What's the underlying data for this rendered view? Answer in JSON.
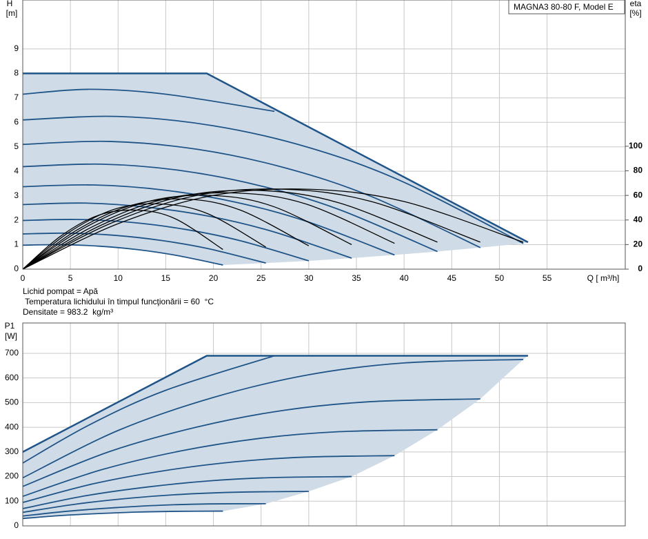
{
  "chart_data": [
    {
      "type": "line",
      "title": "MAGNA3 80-80 F, Model E",
      "ylabel": "H",
      "yunit": "[m]",
      "y2label": "eta",
      "y2unit": "[%]",
      "xlabel": "Q [ m³/h]",
      "annotations": [
        "Lichid pompat = Apă",
        " Temperatura lichidului în timpul funcţionării = 60  °C",
        "Densitate = 983.2  kg/m³"
      ],
      "xlim": [
        0,
        63.2
      ],
      "xticks": [
        0,
        5,
        10,
        15,
        20,
        25,
        30,
        35,
        40,
        45,
        50,
        55
      ],
      "ylim": [
        0,
        11
      ],
      "yticks": [
        0,
        1,
        2,
        3,
        4,
        5,
        6,
        7,
        8,
        9
      ],
      "y2lim": [
        0,
        219
      ],
      "y2ticks": [
        0,
        20,
        40,
        60,
        80,
        100
      ],
      "grid": true,
      "area_color": "#cfdbe6",
      "series": [
        {
          "color": "#1f5488",
          "smooth": false,
          "x": [
            0,
            19.3,
            53
          ],
          "values": [
            8,
            8,
            1.1
          ]
        },
        {
          "color": "#1f5488",
          "x": [
            0,
            10,
            20,
            30,
            40,
            52.5
          ],
          "values": [
            6.1,
            6.24,
            5.86,
            4.97,
            3.55,
            1.05
          ]
        },
        {
          "color": "#1f5488",
          "x": [
            0,
            9.14,
            18.28,
            27.42,
            36.56,
            48
          ],
          "values": [
            5.1,
            5.22,
            4.9,
            4.15,
            2.97,
            0.88
          ]
        },
        {
          "color": "#1f5488",
          "x": [
            0,
            8.29,
            16.58,
            24.87,
            33.16,
            43.5
          ],
          "values": [
            4.19,
            4.29,
            4.03,
            3.41,
            2.44,
            0.72
          ]
        },
        {
          "color": "#1f5488",
          "x": [
            0,
            7.43,
            14.86,
            22.29,
            29.72,
            39
          ],
          "values": [
            3.37,
            3.44,
            3.23,
            2.74,
            1.96,
            0.58
          ]
        },
        {
          "color": "#1f5488",
          "x": [
            0,
            6.57,
            13.14,
            19.71,
            26.28,
            34.5
          ],
          "values": [
            2.64,
            2.7,
            2.53,
            2.15,
            1.53,
            0.45
          ]
        },
        {
          "color": "#1f5488",
          "x": [
            0,
            5.71,
            11.42,
            17.13,
            22.84,
            30
          ],
          "values": [
            1.99,
            2.03,
            1.91,
            1.62,
            1.16,
            0.34
          ]
        },
        {
          "color": "#1f5488",
          "x": [
            0,
            4.86,
            9.72,
            14.58,
            19.44,
            25.5
          ],
          "values": [
            1.44,
            1.47,
            1.38,
            1.17,
            0.84,
            0.25
          ]
        },
        {
          "color": "#1f5488",
          "x": [
            0,
            4,
            8,
            12,
            16,
            21
          ],
          "values": [
            0.98,
            1.0,
            0.94,
            0.8,
            0.57,
            0.17
          ]
        },
        {
          "color": "#1f5488",
          "x": [
            0,
            7,
            15,
            26.4
          ],
          "values": [
            7.15,
            7.35,
            7.15,
            6.45
          ]
        },
        {
          "color": "#000000",
          "axis": "y2",
          "x": [
            0,
            10,
            20,
            30,
            40,
            52.5
          ],
          "values": [
            0,
            37,
            60,
            65,
            55,
            22
          ]
        },
        {
          "color": "#000000",
          "axis": "y2",
          "x": [
            0,
            9.14,
            18.28,
            27.42,
            36.56,
            48
          ],
          "values": [
            0,
            37,
            60,
            65,
            55,
            22
          ]
        },
        {
          "color": "#000000",
          "axis": "y2",
          "x": [
            0,
            8.29,
            16.58,
            24.87,
            33.16,
            43.5
          ],
          "values": [
            0,
            36,
            59,
            64,
            54,
            22
          ]
        },
        {
          "color": "#000000",
          "axis": "y2",
          "x": [
            0,
            7.43,
            14.86,
            22.29,
            29.72,
            39
          ],
          "values": [
            0,
            35,
            57,
            62,
            53,
            21
          ]
        },
        {
          "color": "#000000",
          "axis": "y2",
          "x": [
            0,
            6.57,
            13.14,
            19.71,
            26.28,
            34.5
          ],
          "values": [
            0,
            34,
            55,
            60,
            51,
            20
          ]
        },
        {
          "color": "#000000",
          "axis": "y2",
          "x": [
            0,
            5.71,
            11.42,
            17.13,
            22.84,
            30
          ],
          "values": [
            0,
            32,
            52,
            57,
            48,
            19
          ]
        },
        {
          "color": "#000000",
          "axis": "y2",
          "x": [
            0,
            4.86,
            9.72,
            14.58,
            19.44,
            25.5
          ],
          "values": [
            0,
            30,
            49,
            53,
            45,
            18
          ]
        },
        {
          "color": "#000000",
          "axis": "y2",
          "x": [
            0,
            4,
            8,
            12,
            16,
            21
          ],
          "values": [
            0,
            27,
            44,
            48,
            41,
            16
          ]
        }
      ]
    },
    {
      "type": "line",
      "ylabel": "P1",
      "yunit": "[W]",
      "xlim": [
        0,
        63.2
      ],
      "ylim": [
        0,
        823
      ],
      "yticks": [
        0,
        100,
        200,
        300,
        400,
        500,
        600,
        700
      ],
      "grid": true,
      "area_color": "#cfdbe6",
      "series": [
        {
          "color": "#1f5488",
          "smooth": false,
          "x": [
            0,
            19.3,
            53
          ],
          "values": [
            300,
            690,
            690
          ]
        },
        {
          "color": "#1f5488",
          "x": [
            0,
            10,
            20,
            30,
            40,
            52.5
          ],
          "values": [
            195,
            387,
            521,
            613,
            661,
            675
          ]
        },
        {
          "color": "#1f5488",
          "x": [
            0,
            9.14,
            18.28,
            27.42,
            36.56,
            48
          ],
          "values": [
            160,
            302,
            401,
            469,
            504,
            515
          ]
        },
        {
          "color": "#1f5488",
          "x": [
            0,
            8.29,
            16.58,
            24.87,
            33.16,
            43.5
          ],
          "values": [
            120,
            228,
            304,
            355,
            382,
            390
          ]
        },
        {
          "color": "#1f5488",
          "x": [
            0,
            7.43,
            14.86,
            22.29,
            29.72,
            39
          ],
          "values": [
            95,
            171,
            224,
            260,
            279,
            285
          ]
        },
        {
          "color": "#1f5488",
          "x": [
            0,
            6.57,
            13.14,
            19.71,
            26.28,
            34.5
          ],
          "values": [
            70,
            122,
            158,
            183,
            196,
            200
          ]
        },
        {
          "color": "#1f5488",
          "x": [
            0,
            5.71,
            11.42,
            17.13,
            22.84,
            30
          ],
          "values": [
            55,
            89,
            113,
            129,
            137,
            140
          ]
        },
        {
          "color": "#1f5488",
          "x": [
            0,
            4.86,
            9.72,
            14.58,
            19.44,
            25.5
          ],
          "values": [
            40,
            60,
            74,
            84,
            89,
            90
          ]
        },
        {
          "color": "#1f5488",
          "x": [
            0,
            4,
            8,
            12,
            16,
            21
          ],
          "values": [
            30,
            42,
            50,
            56,
            59,
            60
          ]
        },
        {
          "color": "#1f5488",
          "x": [
            0,
            7,
            15,
            26.4
          ],
          "values": [
            255,
            410,
            550,
            690
          ]
        }
      ]
    }
  ]
}
